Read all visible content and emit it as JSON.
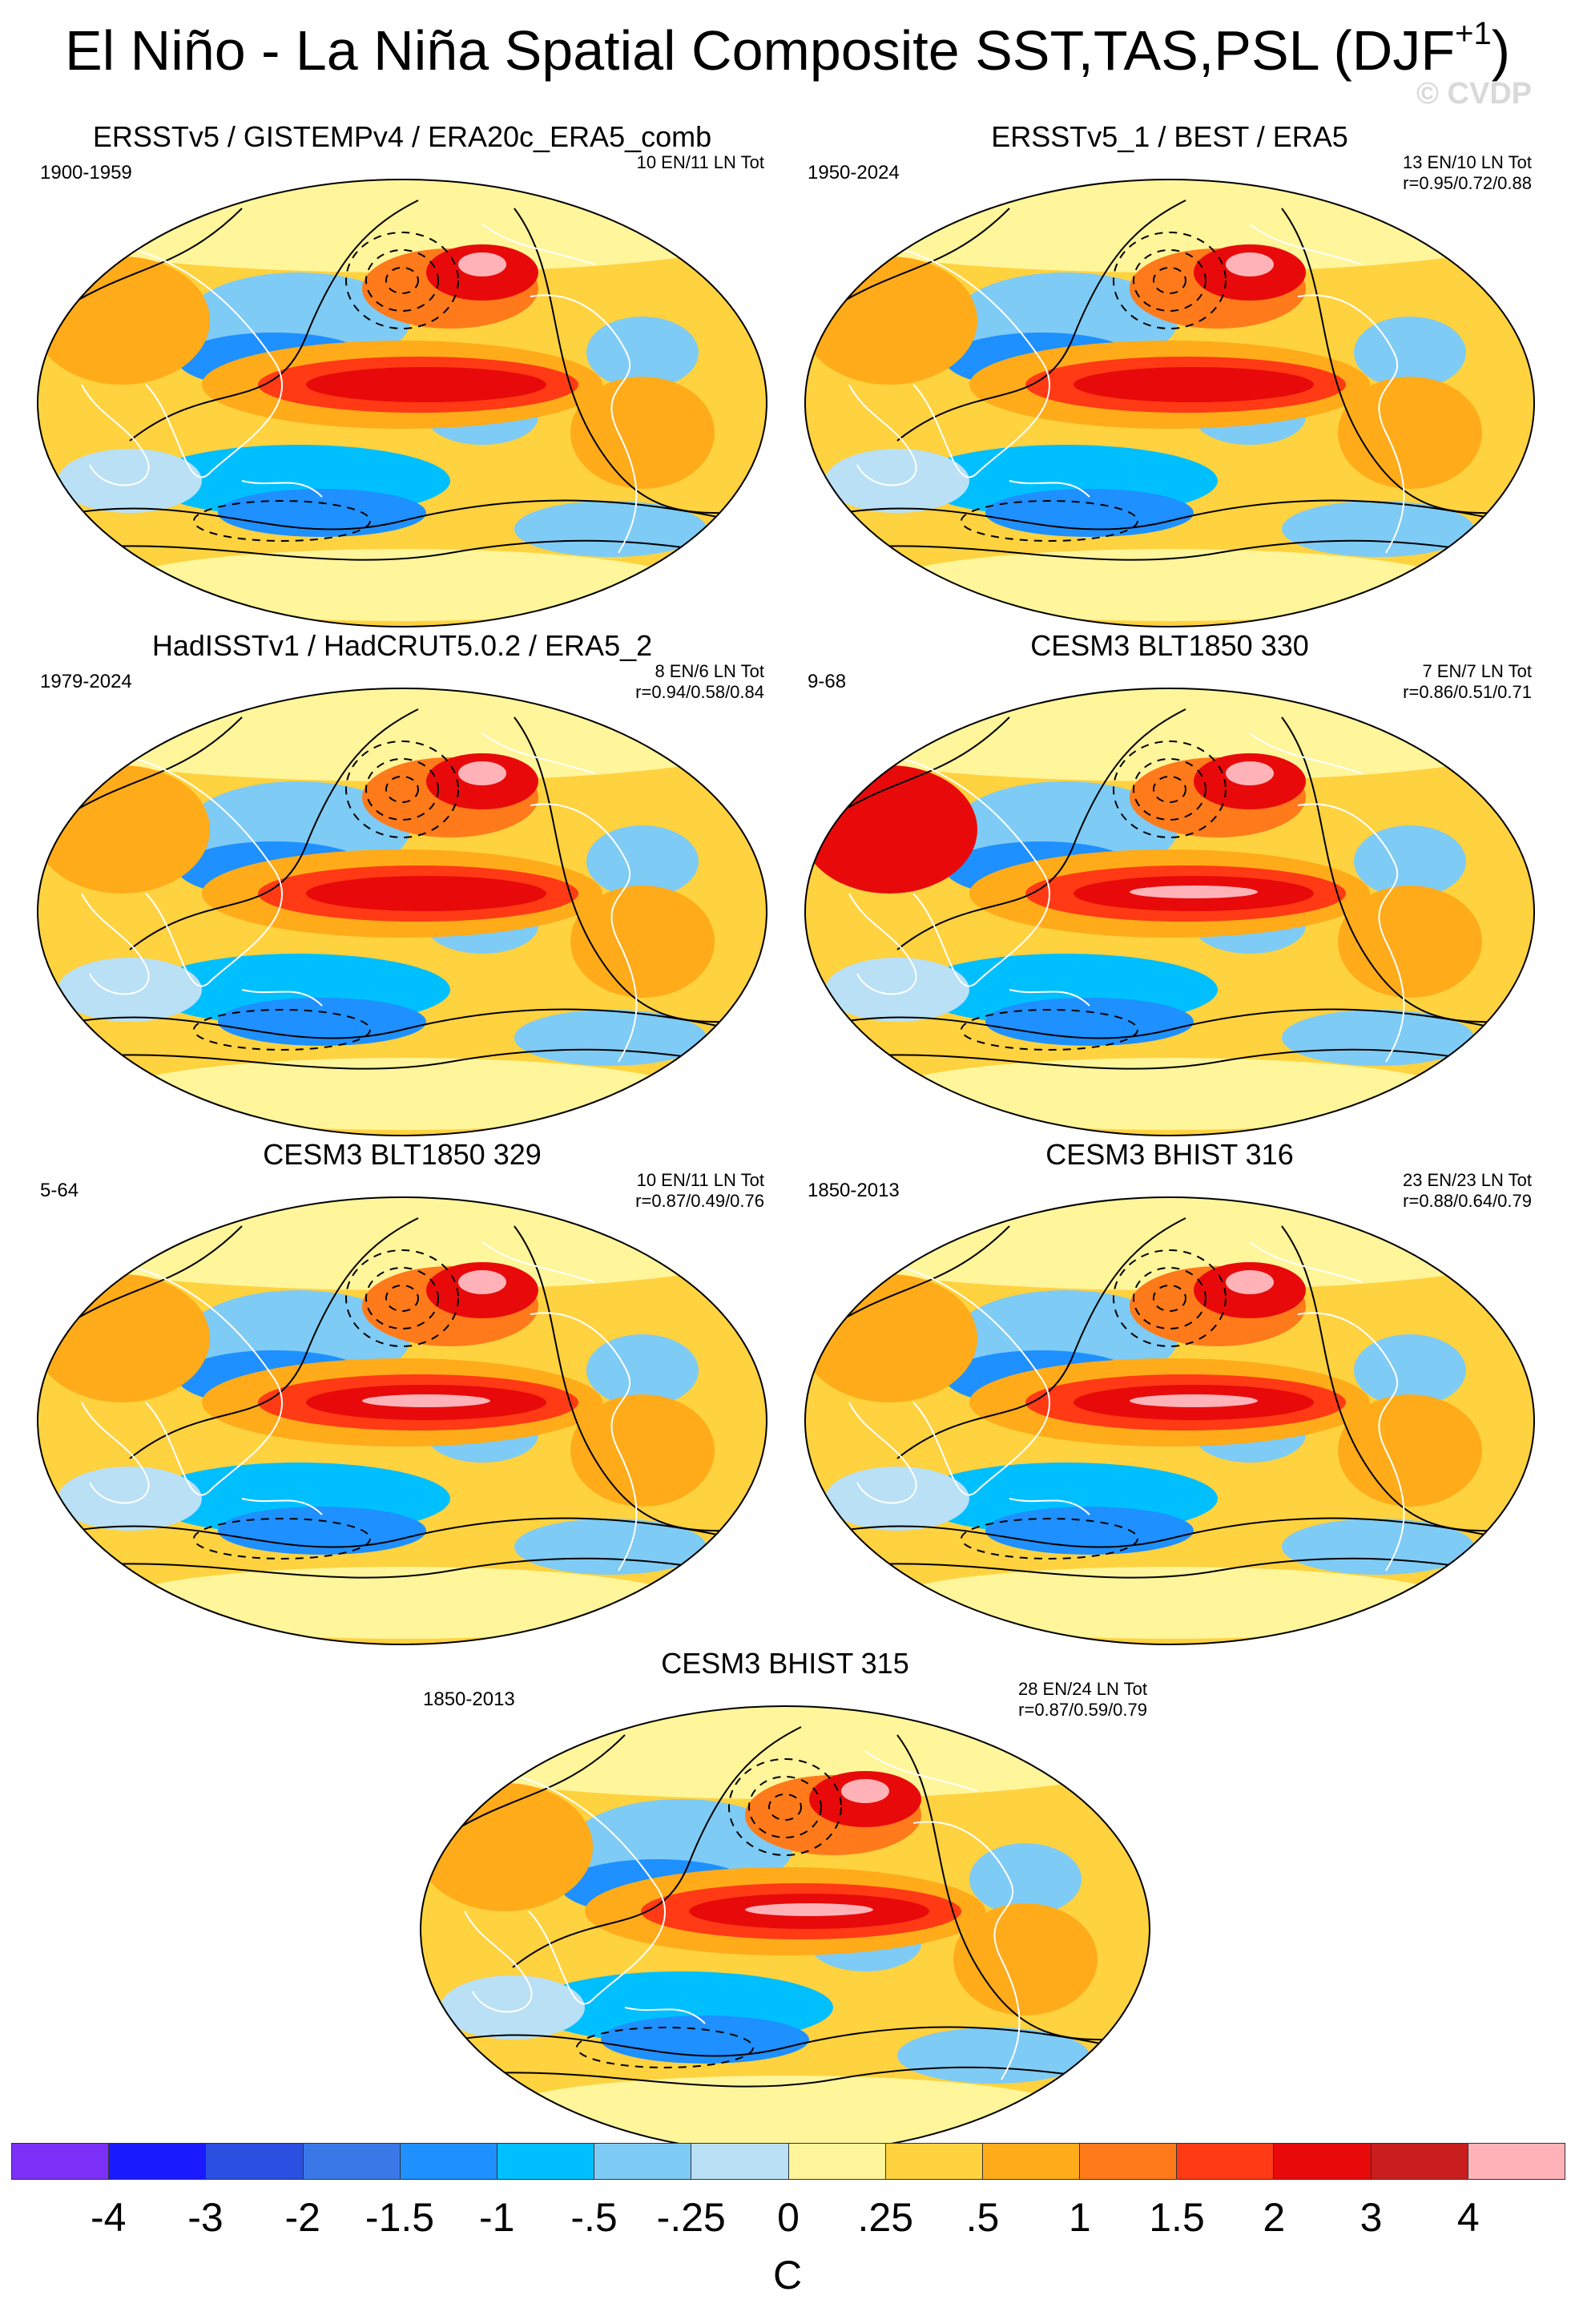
{
  "title": {
    "main": "El Niño - La Niña Spatial Composite SST,TAS,PSL (DJF",
    "sup": "+1",
    "end": ")"
  },
  "watermark": "© CVDP",
  "panels": [
    {
      "title": "ERSSTv5 / GISTEMPv4 / ERA20c_ERA5_comb",
      "period": "1900-1959",
      "counts": "10 EN/11 LN Tot",
      "corr": ""
    },
    {
      "title": "ERSSTv5_1 / BEST / ERA5",
      "period": "1950-2024",
      "counts": "13 EN/10 LN Tot",
      "corr": "r=0.95/0.72/0.88"
    },
    {
      "title": "HadISSTv1 / HadCRUT5.0.2 / ERA5_2",
      "period": "1979-2024",
      "counts": "8 EN/6 LN Tot",
      "corr": "r=0.94/0.58/0.84"
    },
    {
      "title": "CESM3 BLT1850 330",
      "period": "9-68",
      "counts": "7 EN/7 LN Tot",
      "corr": "r=0.86/0.51/0.71"
    },
    {
      "title": "CESM3 BLT1850 329",
      "period": "5-64",
      "counts": "10 EN/11 LN Tot",
      "corr": "r=0.87/0.49/0.76"
    },
    {
      "title": "CESM3 BHIST 316",
      "period": "1850-2013",
      "counts": "23 EN/23 LN Tot",
      "corr": "r=0.88/0.64/0.79"
    },
    {
      "title": "CESM3 BHIST 315",
      "period": "1850-2013",
      "counts": "28 EN/24 LN Tot",
      "corr": "r=0.87/0.59/0.79"
    }
  ],
  "colorbar": {
    "colors": [
      "#7b2ff7",
      "#1a1aff",
      "#2b4fe0",
      "#3a78e8",
      "#1e90ff",
      "#00bfff",
      "#7ecbf5",
      "#b9e0f5",
      "#fff59a",
      "#ffd23f",
      "#ffab1a",
      "#ff7a1a",
      "#ff3a14",
      "#e80a0a",
      "#c81e1e",
      "#ffb3b8"
    ],
    "labels": [
      "-4",
      "-3",
      "-2",
      "-1.5",
      "-1",
      "-.5",
      "-.25",
      "0",
      ".25",
      ".5",
      "1",
      "1.5",
      "2",
      "3",
      "4"
    ],
    "unit": "C"
  }
}
